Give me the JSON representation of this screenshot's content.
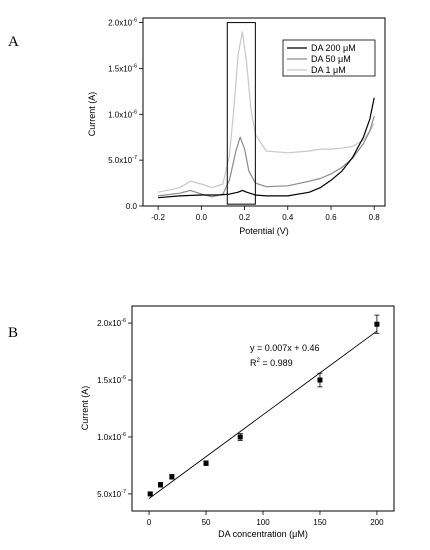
{
  "colors": {
    "black": "#000000",
    "gray": "#8a8a8a",
    "lightgray": "#c8c8c8"
  },
  "chart_data": [
    {
      "panel": "A",
      "type": "line",
      "xlabel": "Potential (V)",
      "ylabel": "Current (A)",
      "xlim": [
        -0.27,
        0.85
      ],
      "ylim": [
        0,
        2.05e-06
      ],
      "x_ticks": [
        -0.2,
        0.0,
        0.2,
        0.4,
        0.6,
        0.8
      ],
      "x_tick_labels": [
        "-0.2",
        "0.0",
        "0.2",
        "0.4",
        "0.6",
        "0.8"
      ],
      "y_ticks": [
        0,
        5e-07,
        1e-06,
        1.5e-06,
        2e-06
      ],
      "y_tick_mantissas": [
        "0.0",
        "5.0x10",
        "1.0x10",
        "1.5x10",
        "2.0x10"
      ],
      "y_tick_exponents": [
        "",
        "-7",
        "-6",
        "-6",
        "-6"
      ],
      "legend_position": "top-right",
      "highlight_box": {
        "x": [
          0.12,
          0.25
        ],
        "y": [
          2e-08,
          2e-06
        ]
      },
      "series": [
        {
          "name": "DA 200 μM",
          "color": "#000000",
          "x": [
            -0.2,
            -0.1,
            0.0,
            0.08,
            0.13,
            0.17,
            0.19,
            0.21,
            0.25,
            0.3,
            0.4,
            0.5,
            0.55,
            0.6,
            0.65,
            0.7,
            0.75,
            0.78,
            0.8
          ],
          "y": [
            9e-08,
            1.1e-07,
            1.2e-07,
            1.2e-07,
            1.3e-07,
            1.5e-07,
            1.7e-07,
            1.5e-07,
            1.2e-07,
            1.1e-07,
            1.1e-07,
            1.5e-07,
            2e-07,
            2.8e-07,
            3.8e-07,
            5.3e-07,
            7.5e-07,
            9.5e-07,
            1.18e-06
          ]
        },
        {
          "name": "DA 50 μM",
          "color": "#8a8a8a",
          "x": [
            -0.2,
            -0.1,
            -0.05,
            0.0,
            0.05,
            0.1,
            0.13,
            0.16,
            0.18,
            0.2,
            0.22,
            0.25,
            0.3,
            0.4,
            0.5,
            0.55,
            0.6,
            0.65,
            0.7,
            0.75,
            0.78,
            0.8
          ],
          "y": [
            1.1e-07,
            1.4e-07,
            1.7e-07,
            1.3e-07,
            1e-07,
            1.3e-07,
            2.8e-07,
            6e-07,
            7.5e-07,
            6.2e-07,
            3.8e-07,
            2.5e-07,
            2.1e-07,
            2.2e-07,
            2.7e-07,
            3e-07,
            3.5e-07,
            4.2e-07,
            5.2e-07,
            6.8e-07,
            8.2e-07,
            9.8e-07
          ]
        },
        {
          "name": "DA 1 μM",
          "color": "#c8c8c8",
          "x": [
            -0.2,
            -0.1,
            -0.05,
            0.0,
            0.05,
            0.1,
            0.13,
            0.15,
            0.17,
            0.19,
            0.21,
            0.23,
            0.25,
            0.3,
            0.4,
            0.5,
            0.55,
            0.6,
            0.65,
            0.7,
            0.75,
            0.78,
            0.8
          ],
          "y": [
            1.5e-07,
            2e-07,
            2.7e-07,
            2.4e-07,
            2e-07,
            2.4e-07,
            5.5e-07,
            1.05e-06,
            1.65e-06,
            1.9e-06,
            1.55e-06,
            1.05e-06,
            7.8e-07,
            6e-07,
            5.8e-07,
            6e-07,
            6.2e-07,
            6.2e-07,
            6.3e-07,
            6.5e-07,
            7.2e-07,
            8.2e-07,
            9e-07
          ]
        }
      ]
    },
    {
      "panel": "B",
      "type": "scatter",
      "xlabel": "DA concentration (μM)",
      "ylabel": "Current (A)",
      "xlim": [
        -15,
        215
      ],
      "ylim": [
        3.5e-07,
        2.15e-06
      ],
      "x_ticks": [
        0,
        50,
        100,
        150,
        200
      ],
      "x_tick_labels": [
        "0",
        "50",
        "100",
        "150",
        "200"
      ],
      "y_ticks": [
        5e-07,
        1e-06,
        1.5e-06,
        2e-06
      ],
      "y_tick_mantissas": [
        "5.0x10",
        "1.0x10",
        "1.5x10",
        "2.0x10"
      ],
      "y_tick_exponents": [
        "-7",
        "-6",
        "-6",
        "-6"
      ],
      "points": {
        "x": [
          1,
          10,
          20,
          50,
          80,
          150,
          200
        ],
        "y": [
          5e-07,
          5.8e-07,
          6.5e-07,
          7.7e-07,
          1e-06,
          1.5e-06,
          1.99e-06
        ],
        "yerr": [
          1e-08,
          2e-08,
          2e-08,
          2e-08,
          3e-08,
          6e-08,
          8e-08
        ]
      },
      "fit_line": {
        "x": [
          0,
          200
        ],
        "y": [
          4.6e-07,
          1.93e-06
        ]
      },
      "equation": "y = 0.007x + 0.46",
      "r2_prefix": "R",
      "r2_exp": "2",
      "r2_value": " = 0.989"
    }
  ],
  "panel_a_label": "A",
  "panel_b_label": "B"
}
